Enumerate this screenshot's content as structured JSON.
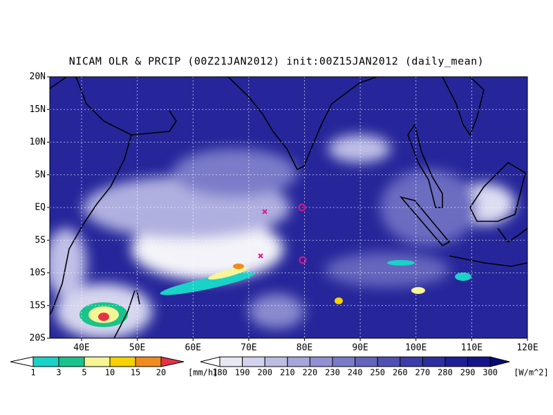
{
  "title": "NICAM OLR & PRCIP (00Z21JAN2012) init:00Z15JAN2012 (daily_mean)",
  "lat_labels": [
    "20N",
    "15N",
    "10N",
    "5N",
    "EQ",
    "5S",
    "10S",
    "15S",
    "20S"
  ],
  "lon_labels": [
    "40E",
    "50E",
    "60E",
    "70E",
    "80E",
    "90E",
    "100E",
    "110E",
    "120E"
  ],
  "precip_scale": {
    "labels": [
      1,
      3,
      5,
      10,
      15,
      20
    ],
    "unit": "[mm/h]",
    "colors": [
      "#ffffff",
      "#19d2c8",
      "#19c38c",
      "#f5f596",
      "#f5d200",
      "#f08c1e",
      "#e63246"
    ]
  },
  "olr_scale": {
    "labels": [
      180,
      190,
      200,
      210,
      220,
      230,
      240,
      250,
      260,
      270,
      280,
      290,
      300
    ],
    "unit": "[W/m^2]",
    "colors": [
      "#ffffff",
      "#e8e8f5",
      "#d2d2ee",
      "#bdbde4",
      "#a6a6db",
      "#9090d2",
      "#7a7ac8",
      "#6464be",
      "#5050b4",
      "#3c3caa",
      "#2d2da0",
      "#1e1e96",
      "#14148c",
      "#0a0a78"
    ]
  }
}
